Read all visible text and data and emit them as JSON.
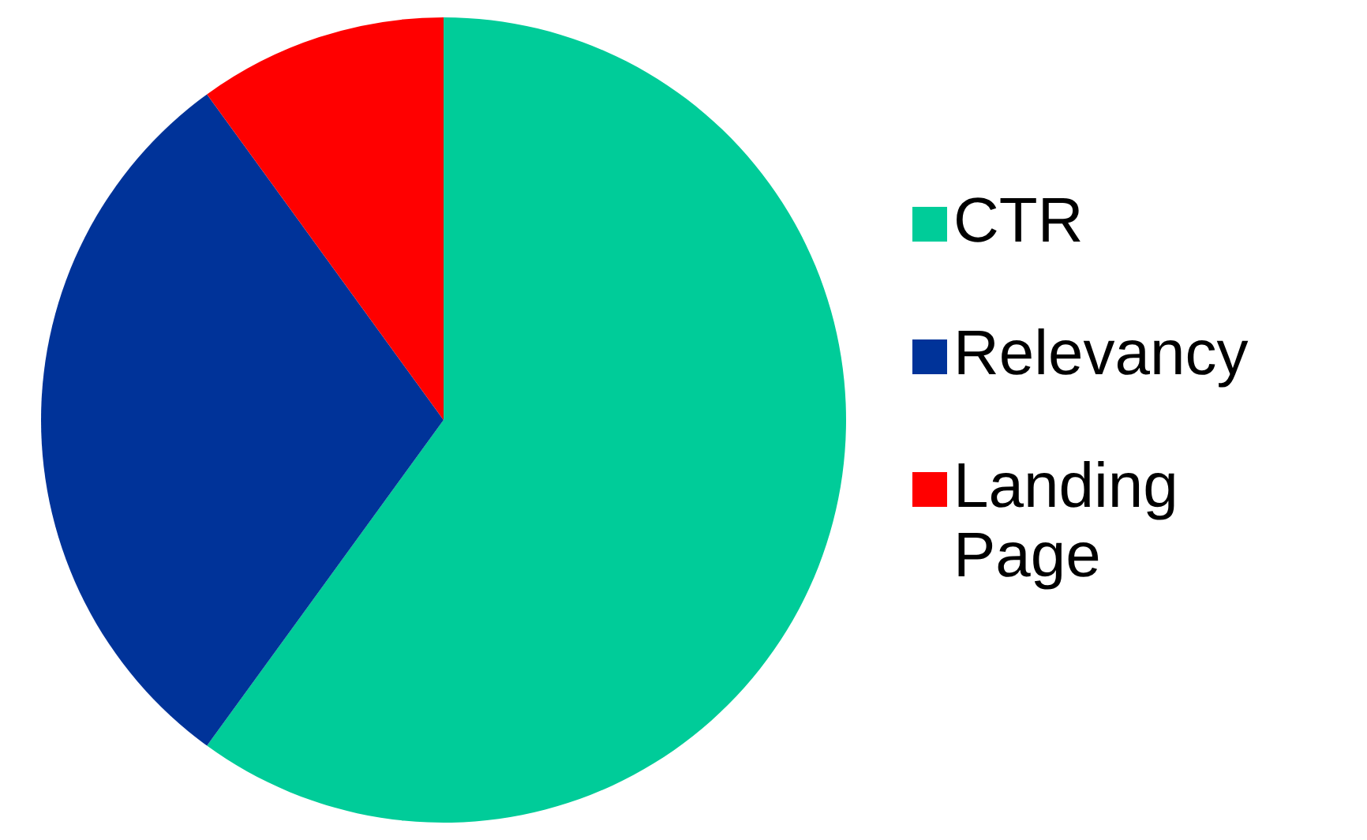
{
  "chart_data": {
    "type": "pie",
    "categories": [
      "CTR",
      "Relevancy",
      "Landing Page"
    ],
    "values": [
      60,
      30,
      10
    ],
    "colors": [
      "#00cc99",
      "#003399",
      "#ff0000"
    ],
    "legend": "right"
  }
}
